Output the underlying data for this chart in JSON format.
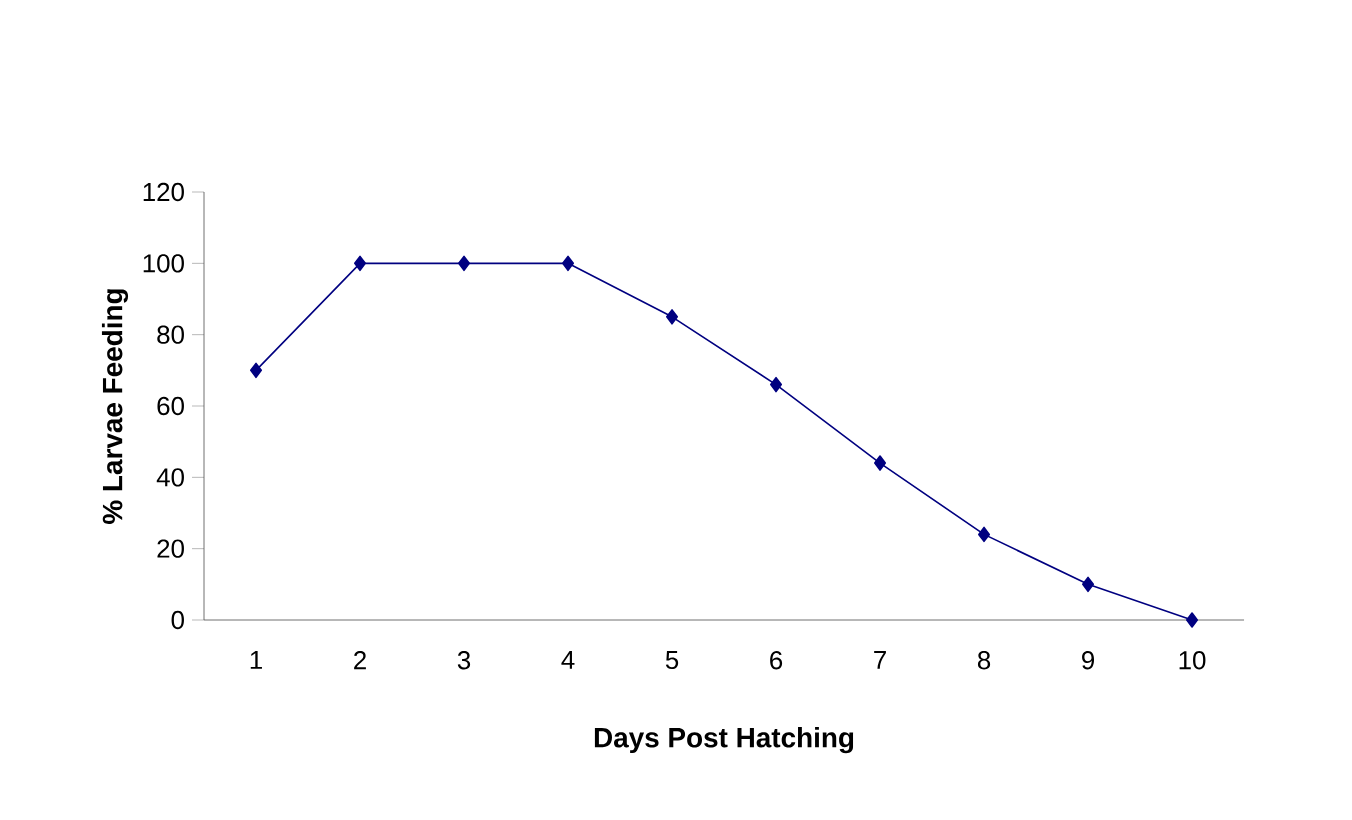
{
  "chart_data": {
    "type": "line",
    "xlabel": "Days Post Hatching",
    "ylabel": "% Larvae Feeding",
    "categories": [
      "1",
      "2",
      "3",
      "4",
      "5",
      "6",
      "7",
      "8",
      "9",
      "10"
    ],
    "values": [
      70,
      100,
      100,
      100,
      85,
      66,
      44,
      24,
      10,
      0
    ],
    "color": "#000080",
    "marker": "diamond",
    "ylim": [
      0,
      120
    ],
    "yticks": [
      0,
      20,
      40,
      60,
      80,
      100,
      120
    ]
  }
}
